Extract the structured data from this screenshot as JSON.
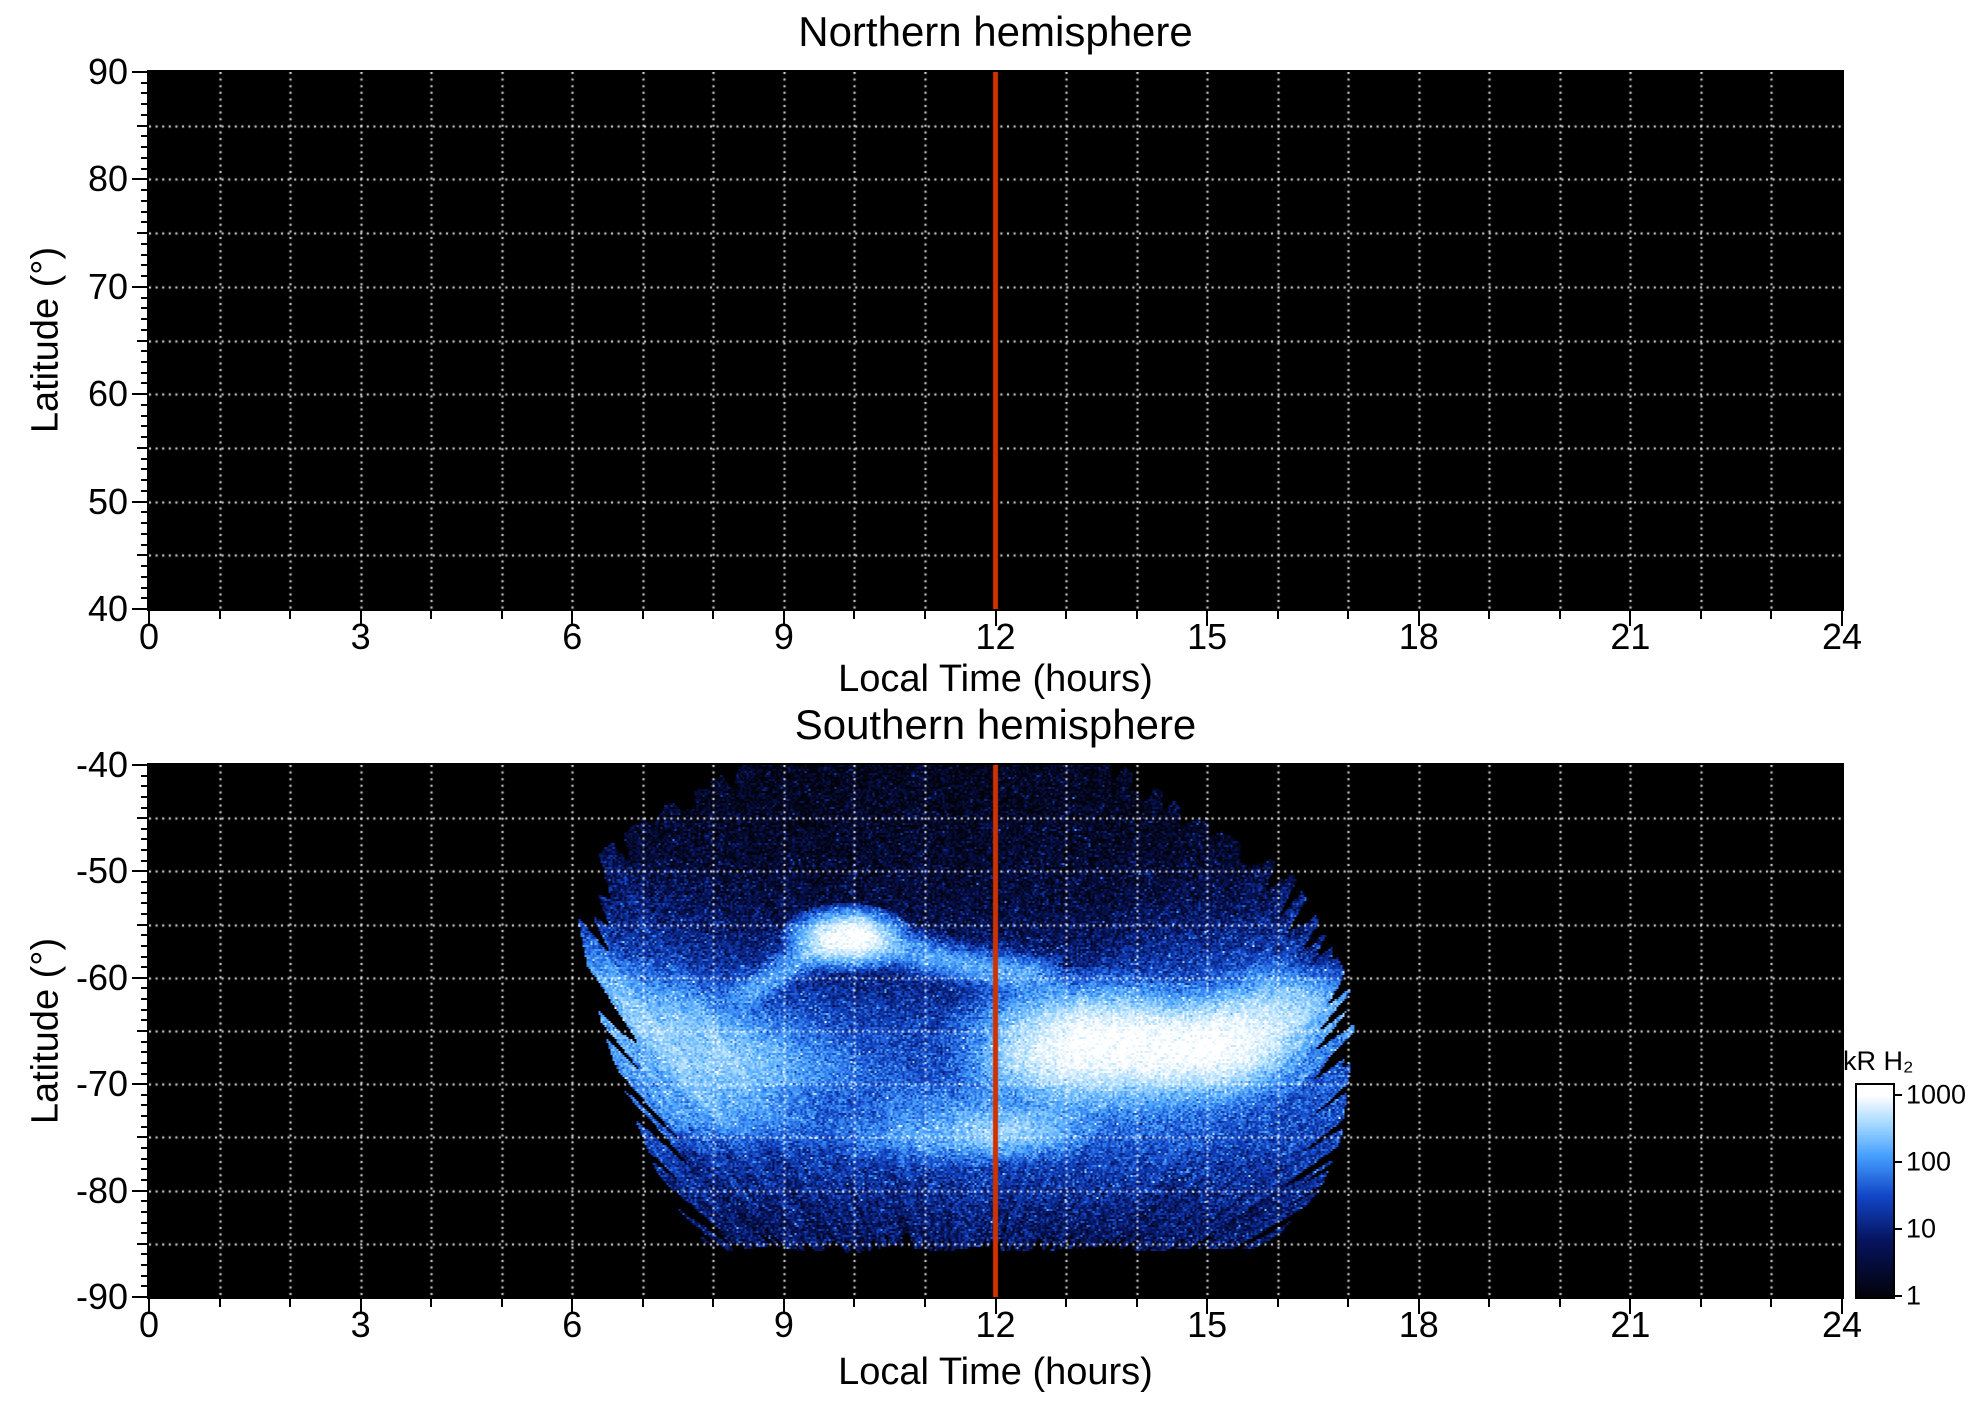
{
  "figure": {
    "background": "#ffffff",
    "text_color": "#000000",
    "grid_color": "#ffffff",
    "noon_line_color": "#cc3300",
    "frame_color": "#000000"
  },
  "colorbar": {
    "label": "kR H₂",
    "scale": "log",
    "min": 1,
    "max": 1000,
    "tick_labels": [
      "1000",
      "100",
      "10",
      "1"
    ],
    "colormap_stops": [
      [
        0.0,
        [
          2,
          2,
          10
        ]
      ],
      [
        0.28,
        [
          6,
          20,
          95
        ]
      ],
      [
        0.5,
        [
          18,
          70,
          200
        ]
      ],
      [
        0.7,
        [
          70,
          160,
          255
        ]
      ],
      [
        0.85,
        [
          160,
          215,
          255
        ]
      ],
      [
        1.0,
        [
          255,
          255,
          255
        ]
      ]
    ]
  },
  "chart_data": [
    {
      "type": "heatmap",
      "title": "Northern hemisphere",
      "xlabel": "Local Time (hours)",
      "ylabel": "Latitude (°)",
      "x_range": [
        0,
        24
      ],
      "y_range": [
        40,
        90
      ],
      "x_ticks": [
        0,
        3,
        6,
        9,
        12,
        15,
        18,
        21,
        24
      ],
      "y_ticks": [
        90,
        80,
        70,
        60,
        50,
        40
      ],
      "grid": {
        "x_step": 1,
        "y_step": 5,
        "style": "dotted"
      },
      "noon_line_x": 12,
      "emission": null,
      "note": "no auroral emission observed / no coverage — panel entirely black"
    },
    {
      "type": "heatmap",
      "title": "Southern hemisphere",
      "xlabel": "Local Time (hours)",
      "ylabel": "Latitude (°)",
      "x_range": [
        0,
        24
      ],
      "y_range": [
        -90,
        -40
      ],
      "x_ticks": [
        0,
        3,
        6,
        9,
        12,
        15,
        18,
        21,
        24
      ],
      "y_ticks": [
        -40,
        -50,
        -60,
        -70,
        -80,
        -90
      ],
      "grid": {
        "x_step": 1,
        "y_step": 5,
        "style": "dotted"
      },
      "noon_line_x": 12,
      "units": "kR H₂",
      "emission": {
        "coverage": {
          "lat_bottom": -85.5,
          "left_edge": [
            [
              -86,
              8.3
            ],
            [
              -85,
              7.9
            ],
            [
              -80,
              7.3
            ],
            [
              -75,
              7.0
            ],
            [
              -70,
              6.7
            ],
            [
              -65,
              6.45
            ],
            [
              -60,
              6.25
            ],
            [
              -55,
              6.1
            ],
            [
              -50,
              6.05
            ],
            [
              -45,
              7.0
            ],
            [
              -40,
              8.4
            ]
          ],
          "right_edge": [
            [
              -86,
              15.3
            ],
            [
              -85,
              15.9
            ],
            [
              -80,
              16.6
            ],
            [
              -75,
              16.9
            ],
            [
              -70,
              17.0
            ],
            [
              -65,
              17.1
            ],
            [
              -60,
              17.0
            ],
            [
              -55,
              16.6
            ],
            [
              -50,
              16.2
            ],
            [
              -45,
              14.9
            ],
            [
              -40,
              13.8
            ]
          ]
        },
        "background_profile": [
          [
            -86,
            6
          ],
          [
            -82,
            9
          ],
          [
            -78,
            16
          ],
          [
            -74,
            26
          ],
          [
            -71,
            34
          ],
          [
            -68,
            34
          ],
          [
            -65,
            26
          ],
          [
            -62,
            14
          ],
          [
            -58,
            7
          ],
          [
            -54,
            4
          ],
          [
            -48,
            2.4
          ],
          [
            -40,
            1.6
          ]
        ],
        "main_oval": {
          "points": [
            [
              6.4,
              -60.5
            ],
            [
              7.2,
              -63.5
            ],
            [
              8.2,
              -66.5
            ],
            [
              9.2,
              -68.5
            ],
            [
              10.2,
              -70
            ],
            [
              11.2,
              -71
            ],
            [
              12.2,
              -71.5
            ],
            [
              13.2,
              -70
            ],
            [
              14.2,
              -68
            ],
            [
              15.2,
              -66.5
            ],
            [
              16.0,
              -64.5
            ],
            [
              16.9,
              -61.5
            ]
          ],
          "amps": [
            90,
            110,
            120,
            100,
            70,
            60,
            70,
            150,
            250,
            260,
            200,
            120
          ],
          "sigma_lat": 2.3
        },
        "secondary_arc": {
          "points": [
            [
              8.5,
              -61.5
            ],
            [
              9.2,
              -58.3
            ],
            [
              9.9,
              -55.9
            ],
            [
              10.8,
              -57.6
            ],
            [
              11.7,
              -59.0
            ],
            [
              12.6,
              -59.8
            ]
          ],
          "amp": 170,
          "sigma_lat": 0.9
        },
        "bright_spots": [
          [
            9.9,
            -56.3,
            0.32,
            1.1,
            1600
          ],
          [
            13.3,
            -65.5,
            0.7,
            2.2,
            900
          ],
          [
            14.4,
            -66.5,
            0.8,
            2.0,
            900
          ],
          [
            15.2,
            -66.5,
            0.5,
            1.8,
            600
          ],
          [
            12.7,
            -68.0,
            0.5,
            1.5,
            500
          ],
          [
            7.8,
            -67.5,
            0.6,
            2.0,
            250
          ],
          [
            7.1,
            -64.0,
            0.5,
            2.0,
            200
          ],
          [
            8.3,
            -71.5,
            0.7,
            1.8,
            260
          ],
          [
            12.2,
            -74.5,
            0.5,
            1.2,
            350
          ],
          [
            10.9,
            -74.0,
            0.6,
            1.5,
            220
          ],
          [
            15.8,
            -63.5,
            0.5,
            1.5,
            400
          ],
          [
            16.3,
            -61.0,
            0.4,
            1.5,
            250
          ]
        ],
        "dark_patches": [
          [
            9.5,
            -71.5,
            1.1,
            1.6,
            0.55
          ],
          [
            10.9,
            -68.5,
            0.9,
            2.2,
            0.5
          ],
          [
            10.6,
            -73.5,
            0.8,
            1.2,
            0.45
          ],
          [
            16.7,
            -58.5,
            0.6,
            2.8,
            0.85
          ]
        ],
        "streaks": {
          "center_lt": 11.3,
          "center_lat": -101,
          "angular_scale": 160
        }
      }
    }
  ]
}
